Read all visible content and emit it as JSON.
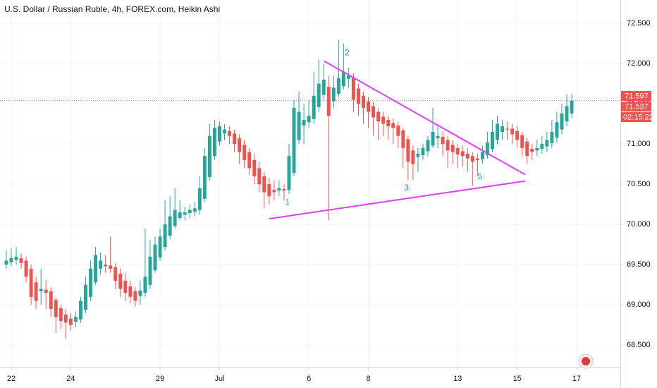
{
  "chart_data": {
    "type": "candlestick",
    "title": "U.S. Dollar / Russian Ruble, 4h, FOREX.com, Heikin Ashi",
    "up_color": "#26a69a",
    "down_color": "#ef5350",
    "grid": true,
    "xlim": [
      -2.27,
      122.8
    ],
    "ylim": [
      68.23,
      72.79
    ],
    "xticks": [
      {
        "value": 0,
        "label": "22"
      },
      {
        "value": 12,
        "label": "24"
      },
      {
        "value": 30,
        "label": "29"
      },
      {
        "value": 42,
        "label": "Jul"
      },
      {
        "value": 60,
        "label": "6"
      },
      {
        "value": 72,
        "label": "8"
      },
      {
        "value": 90,
        "label": "13"
      },
      {
        "value": 102,
        "label": "15"
      },
      {
        "value": 114,
        "label": "17"
      }
    ],
    "yticks": [
      {
        "value": 68.5,
        "label": "68.500"
      },
      {
        "value": 69,
        "label": "69.000"
      },
      {
        "value": 69.5,
        "label": "69.500"
      },
      {
        "value": 70,
        "label": "70.000"
      },
      {
        "value": 70.5,
        "label": "70.500"
      },
      {
        "value": 71,
        "label": "71.000"
      },
      {
        "value": 71.5,
        "label": "71.500"
      },
      {
        "value": 72,
        "label": "72.000"
      },
      {
        "value": 72.5,
        "label": "72.500"
      }
    ],
    "x": [
      -1,
      0,
      1,
      2,
      3,
      4,
      5,
      6,
      7,
      8,
      9,
      10,
      11,
      12,
      13,
      14,
      15,
      16,
      17,
      18,
      19,
      20,
      21,
      22,
      23,
      24,
      25,
      26,
      27,
      28,
      29,
      30,
      31,
      32,
      33,
      34,
      35,
      36,
      37,
      38,
      39,
      40,
      41,
      42,
      43,
      44,
      45,
      46,
      47,
      48,
      49,
      50,
      51,
      52,
      53,
      54,
      55,
      56,
      57,
      58,
      59,
      60,
      61,
      62,
      63,
      64,
      65,
      66,
      67,
      68,
      69,
      70,
      71,
      72,
      73,
      74,
      75,
      76,
      77,
      78,
      79,
      80,
      81,
      82,
      83,
      84,
      85,
      86,
      87,
      88,
      89,
      90,
      91,
      92,
      93,
      94,
      95,
      96,
      97,
      98,
      99,
      100,
      101,
      102,
      103,
      104,
      105,
      106,
      107,
      108,
      109,
      110,
      111,
      112,
      113
    ],
    "candles": [
      [
        69.5,
        69.68,
        69.45,
        69.55
      ],
      [
        69.53,
        69.7,
        69.48,
        69.58
      ],
      [
        69.56,
        69.72,
        69.5,
        69.6
      ],
      [
        69.58,
        69.64,
        69.45,
        69.52
      ],
      [
        69.55,
        69.6,
        69.28,
        69.35
      ],
      [
        69.45,
        69.5,
        69.0,
        69.1
      ],
      [
        69.28,
        69.35,
        68.95,
        69.05
      ],
      [
        69.17,
        69.45,
        69.0,
        69.2
      ],
      [
        69.19,
        69.3,
        68.95,
        69.15
      ],
      [
        69.17,
        69.22,
        68.85,
        68.95
      ],
      [
        69.06,
        69.1,
        68.65,
        68.85
      ],
      [
        68.96,
        69.0,
        68.7,
        68.8
      ],
      [
        68.88,
        68.95,
        68.58,
        68.78
      ],
      [
        68.83,
        68.9,
        68.68,
        68.75
      ],
      [
        68.79,
        68.92,
        68.72,
        68.85
      ],
      [
        68.82,
        69.1,
        68.78,
        69.05
      ],
      [
        68.94,
        69.35,
        68.9,
        69.25
      ],
      [
        69.1,
        69.55,
        69.05,
        69.45
      ],
      [
        69.28,
        69.72,
        69.25,
        69.62
      ],
      [
        69.45,
        69.65,
        69.38,
        69.55
      ],
      [
        69.5,
        69.62,
        69.4,
        69.48
      ],
      [
        69.49,
        69.85,
        69.4,
        69.45
      ],
      [
        69.47,
        69.52,
        69.2,
        69.3
      ],
      [
        69.39,
        69.45,
        69.1,
        69.2
      ],
      [
        69.3,
        69.4,
        69.05,
        69.15
      ],
      [
        69.23,
        69.3,
        69.02,
        69.1
      ],
      [
        69.17,
        69.22,
        68.98,
        69.05
      ],
      [
        69.11,
        69.3,
        69.0,
        69.18
      ],
      [
        69.15,
        69.95,
        69.1,
        69.35
      ],
      [
        69.25,
        69.8,
        69.2,
        69.6
      ],
      [
        69.43,
        69.85,
        69.4,
        69.75
      ],
      [
        69.59,
        69.95,
        69.55,
        69.85
      ],
      [
        69.72,
        70.3,
        69.68,
        70.0
      ],
      [
        69.86,
        70.35,
        69.82,
        70.1
      ],
      [
        69.98,
        70.45,
        69.95,
        70.18
      ],
      [
        70.08,
        70.3,
        70.05,
        70.15
      ],
      [
        70.12,
        70.22,
        70.05,
        70.15
      ],
      [
        70.14,
        70.25,
        70.08,
        70.18
      ],
      [
        70.16,
        70.28,
        70.1,
        70.2
      ],
      [
        70.18,
        70.6,
        70.12,
        70.45
      ],
      [
        70.32,
        70.95,
        70.28,
        70.85
      ],
      [
        70.59,
        71.25,
        70.55,
        71.1
      ],
      [
        70.85,
        71.3,
        70.8,
        71.2
      ],
      [
        71.03,
        71.28,
        70.98,
        71.22
      ],
      [
        71.13,
        71.25,
        71.05,
        71.18
      ],
      [
        71.16,
        71.22,
        71.0,
        71.1
      ],
      [
        71.13,
        71.18,
        70.9,
        71.0
      ],
      [
        71.07,
        71.12,
        70.75,
        70.9
      ],
      [
        70.99,
        71.05,
        70.7,
        70.8
      ],
      [
        70.9,
        70.95,
        70.62,
        70.7
      ],
      [
        70.8,
        70.88,
        70.5,
        70.6
      ],
      [
        70.7,
        70.78,
        70.4,
        70.5
      ],
      [
        70.6,
        70.65,
        70.2,
        70.4
      ],
      [
        70.5,
        70.58,
        70.25,
        70.35
      ],
      [
        70.43,
        70.55,
        70.3,
        70.4
      ],
      [
        70.42,
        70.55,
        70.35,
        70.45
      ],
      [
        70.44,
        70.5,
        70.3,
        70.42
      ],
      [
        70.43,
        71.0,
        70.38,
        70.85
      ],
      [
        70.64,
        71.55,
        70.6,
        71.45
      ],
      [
        71.05,
        71.65,
        71.0,
        71.4
      ],
      [
        71.23,
        71.5,
        71.0,
        71.3
      ],
      [
        71.27,
        71.55,
        71.2,
        71.35
      ],
      [
        71.31,
        71.9,
        71.25,
        71.6
      ],
      [
        71.46,
        72.05,
        71.4,
        71.75
      ],
      [
        71.61,
        72.0,
        71.55,
        71.8
      ],
      [
        71.71,
        71.85,
        70.05,
        71.35
      ],
      [
        71.53,
        71.85,
        71.45,
        71.7
      ],
      [
        71.62,
        72.3,
        71.58,
        71.82
      ],
      [
        71.72,
        72.25,
        71.68,
        71.9
      ],
      [
        71.81,
        71.95,
        71.7,
        71.85
      ],
      [
        71.83,
        71.88,
        71.4,
        71.55
      ],
      [
        71.69,
        71.75,
        71.35,
        71.5
      ],
      [
        71.6,
        71.65,
        71.25,
        71.45
      ],
      [
        71.53,
        71.58,
        71.2,
        71.4
      ],
      [
        71.47,
        71.52,
        71.1,
        71.33
      ],
      [
        71.4,
        71.45,
        71.05,
        71.28
      ],
      [
        71.34,
        71.4,
        71.1,
        71.25
      ],
      [
        71.3,
        71.35,
        71.05,
        71.22
      ],
      [
        71.26,
        71.32,
        71.0,
        71.2
      ],
      [
        71.23,
        71.28,
        70.95,
        71.1
      ],
      [
        71.17,
        71.2,
        70.7,
        70.95
      ],
      [
        71.06,
        71.1,
        70.55,
        70.78
      ],
      [
        70.92,
        70.98,
        70.55,
        70.75
      ],
      [
        70.84,
        70.95,
        70.65,
        70.88
      ],
      [
        70.86,
        71.0,
        70.8,
        70.95
      ],
      [
        70.91,
        71.1,
        70.85,
        71.05
      ],
      [
        70.98,
        71.45,
        70.95,
        71.15
      ],
      [
        71.07,
        71.25,
        70.95,
        71.1
      ],
      [
        71.09,
        71.15,
        70.85,
        71.0
      ],
      [
        71.05,
        71.1,
        70.7,
        70.92
      ],
      [
        70.99,
        71.05,
        70.75,
        70.9
      ],
      [
        70.95,
        71.0,
        70.7,
        70.87
      ],
      [
        70.91,
        70.98,
        70.72,
        70.85
      ],
      [
        70.88,
        70.95,
        70.65,
        70.82
      ],
      [
        70.85,
        70.9,
        70.48,
        70.78
      ],
      [
        70.82,
        70.88,
        70.6,
        70.8
      ],
      [
        70.81,
        70.98,
        70.75,
        70.9
      ],
      [
        70.86,
        71.15,
        70.82,
        71.02
      ],
      [
        70.94,
        71.3,
        70.9,
        71.15
      ],
      [
        71.05,
        71.35,
        71.0,
        71.25
      ],
      [
        71.15,
        71.3,
        71.05,
        71.22
      ],
      [
        71.19,
        71.28,
        71.05,
        71.18
      ],
      [
        71.19,
        71.25,
        71.0,
        71.12
      ],
      [
        71.16,
        71.22,
        70.95,
        71.05
      ],
      [
        71.11,
        71.15,
        70.85,
        70.95
      ],
      [
        71.03,
        71.08,
        70.75,
        70.85
      ],
      [
        70.94,
        71.0,
        70.8,
        70.9
      ],
      [
        70.92,
        71.05,
        70.85,
        70.95
      ],
      [
        70.94,
        71.1,
        70.88,
        71.0
      ],
      [
        70.97,
        71.15,
        70.9,
        71.05
      ],
      [
        71.01,
        71.3,
        70.95,
        71.15
      ],
      [
        71.08,
        71.4,
        71.02,
        71.27
      ],
      [
        71.18,
        71.5,
        71.12,
        71.38
      ],
      [
        71.28,
        71.62,
        71.22,
        71.47
      ],
      [
        71.38,
        71.62,
        71.32,
        71.537
      ]
    ],
    "price_labels": [
      {
        "value": 71.597,
        "label": "71.597"
      },
      {
        "value": 71.537,
        "label": "71.537"
      }
    ],
    "countdown": "02:15:22",
    "trend_lines": [
      {
        "color": "#e040fb",
        "x": [
          63.1,
          103.6
        ],
        "y": [
          72.03,
          70.62
        ]
      },
      {
        "color": "#e040fb",
        "x": [
          52.0,
          103.6
        ],
        "y": [
          70.07,
          70.54
        ]
      }
    ],
    "wave_labels": [
      {
        "text": "1",
        "x": 55.7,
        "y": 70.27
      },
      {
        "text": "2",
        "x": 67.7,
        "y": 72.13
      },
      {
        "text": "3",
        "x": 79.7,
        "y": 70.45
      },
      {
        "text": "5",
        "x": 94.5,
        "y": 70.59
      }
    ],
    "wave_color": "#2196f3"
  }
}
